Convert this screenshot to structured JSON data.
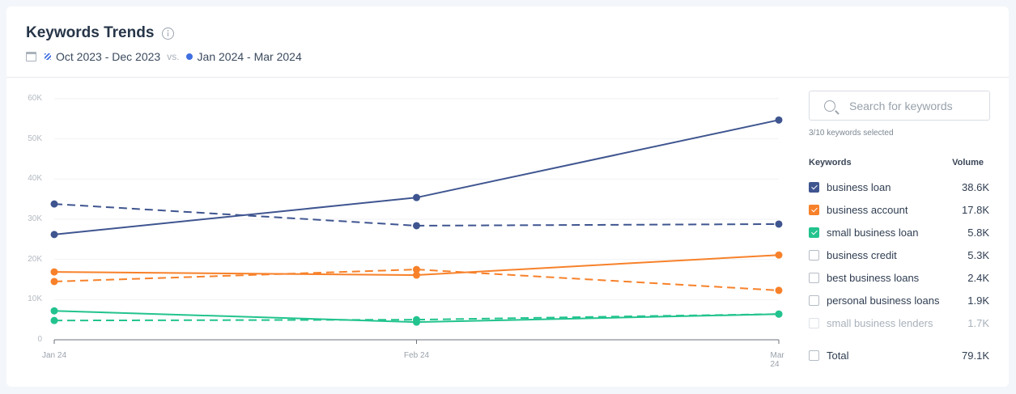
{
  "header": {
    "title": "Keywords Trends",
    "previous_range": "Oct 2023 - Dec 2023",
    "vs_label": "vs.",
    "current_range": "Jan 2024 - Mar 2024"
  },
  "sidebar": {
    "search_placeholder": "Search for keywords",
    "selected_count": "3/10 keywords selected",
    "col_keywords": "Keywords",
    "col_volume": "Volume",
    "keywords": [
      {
        "label": "business loan",
        "volume": "38.6K",
        "checked": true,
        "color": "#3f5590"
      },
      {
        "label": "business account",
        "volume": "17.8K",
        "checked": true,
        "color": "#f7812a"
      },
      {
        "label": "small business loan",
        "volume": "5.8K",
        "checked": true,
        "color": "#22c38e"
      },
      {
        "label": "business credit",
        "volume": "5.3K",
        "checked": false
      },
      {
        "label": "best business loans",
        "volume": "2.4K",
        "checked": false
      },
      {
        "label": "personal business loans",
        "volume": "1.9K",
        "checked": false
      },
      {
        "label": "small business lenders",
        "volume": "1.7K",
        "checked": false,
        "disabled": true
      }
    ],
    "total_label": "Total",
    "total_volume": "79.1K"
  },
  "chart_data": {
    "type": "line",
    "title": "Keywords Trends",
    "categories": [
      "Jan 24",
      "Feb 24",
      "Mar 24"
    ],
    "yticks": [
      "0",
      "10K",
      "20K",
      "30K",
      "40K",
      "50K",
      "60K"
    ],
    "ylim": [
      0,
      60000
    ],
    "grid": true,
    "series": [
      {
        "name": "business loan (Jan 2024 - Mar 2024)",
        "color": "#3f5590",
        "dashed": false,
        "values": [
          26200,
          35400,
          54700
        ]
      },
      {
        "name": "business loan (Oct 2023 - Dec 2023)",
        "color": "#3f5590",
        "dashed": true,
        "values": [
          33800,
          28400,
          28800
        ]
      },
      {
        "name": "business account (Jan 2024 - Mar 2024)",
        "color": "#f7812a",
        "dashed": false,
        "values": [
          16900,
          16100,
          21100
        ]
      },
      {
        "name": "business account (Oct 2023 - Dec 2023)",
        "color": "#f7812a",
        "dashed": true,
        "values": [
          14500,
          17500,
          12300
        ]
      },
      {
        "name": "small business loan (Jan 2024 - Mar 2024)",
        "color": "#22c38e",
        "dashed": false,
        "values": [
          7200,
          4400,
          6400
        ]
      },
      {
        "name": "small business loan (Oct 2023 - Dec 2023)",
        "color": "#22c38e",
        "dashed": true,
        "values": [
          4800,
          5000,
          6400
        ]
      }
    ]
  }
}
